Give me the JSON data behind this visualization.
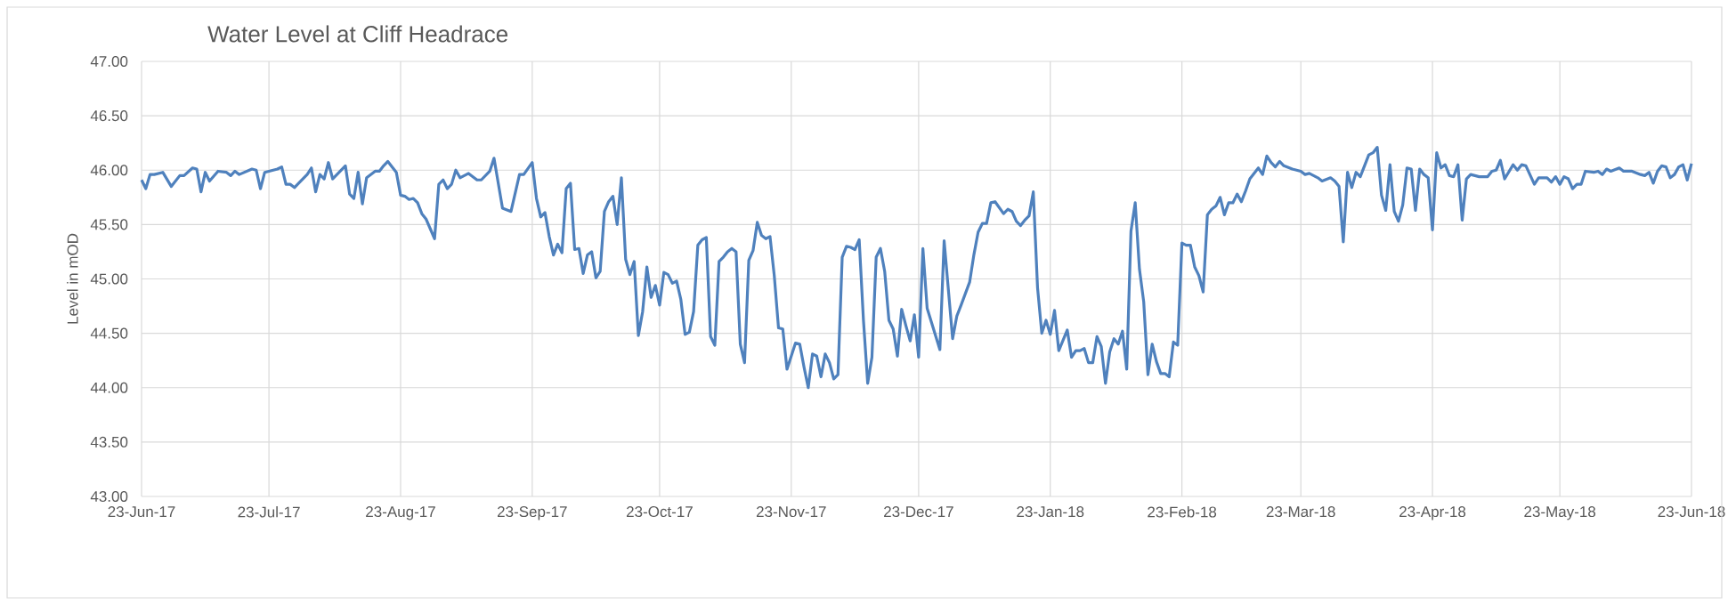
{
  "chart_data": {
    "type": "line",
    "title": "Water Level at Cliff Headrace",
    "ylabel": "Level in mOD",
    "color": "#4f81bd",
    "grid": true,
    "xlim": [
      "2017-06-23",
      "2018-06-23"
    ],
    "xticks": [
      {
        "value": "2017-06-23",
        "label": "23-Jun-17"
      },
      {
        "value": "2017-07-23",
        "label": "23-Jul-17"
      },
      {
        "value": "2017-08-23",
        "label": "23-Aug-17"
      },
      {
        "value": "2017-09-23",
        "label": "23-Sep-17"
      },
      {
        "value": "2017-10-23",
        "label": "23-Oct-17"
      },
      {
        "value": "2017-11-23",
        "label": "23-Nov-17"
      },
      {
        "value": "2017-12-23",
        "label": "23-Dec-17"
      },
      {
        "value": "2018-01-23",
        "label": "23-Jan-18"
      },
      {
        "value": "2018-02-23",
        "label": "23-Feb-18"
      },
      {
        "value": "2018-03-23",
        "label": "23-Mar-18"
      },
      {
        "value": "2018-04-23",
        "label": "23-Apr-18"
      },
      {
        "value": "2018-05-23",
        "label": "23-May-18"
      },
      {
        "value": "2018-06-23",
        "label": "23-Jun-18"
      }
    ],
    "ylim": [
      43,
      47
    ],
    "yticks": [
      {
        "value": 43,
        "label": "43.00"
      },
      {
        "value": 43.5,
        "label": "43.50"
      },
      {
        "value": 44,
        "label": "44.00"
      },
      {
        "value": 44.5,
        "label": "44.50"
      },
      {
        "value": 45,
        "label": "45.00"
      },
      {
        "value": 45.5,
        "label": "45.50"
      },
      {
        "value": 46,
        "label": "46.00"
      },
      {
        "value": 46.5,
        "label": "46.50"
      },
      {
        "value": 47,
        "label": "47.00"
      }
    ],
    "x": [
      "2017-06-23",
      "2017-06-24",
      "2017-06-25",
      "2017-06-26",
      "2017-06-28",
      "2017-06-30",
      "2017-07-02",
      "2017-07-03",
      "2017-07-05",
      "2017-07-06",
      "2017-07-07",
      "2017-07-08",
      "2017-07-09",
      "2017-07-11",
      "2017-07-13",
      "2017-07-14",
      "2017-07-15",
      "2017-07-16",
      "2017-07-19",
      "2017-07-20",
      "2017-07-21",
      "2017-07-22",
      "2017-07-25",
      "2017-07-26",
      "2017-07-27",
      "2017-07-28",
      "2017-07-29",
      "2017-07-30",
      "2017-08-01",
      "2017-08-02",
      "2017-08-03",
      "2017-08-04",
      "2017-08-05",
      "2017-08-06",
      "2017-08-07",
      "2017-08-10",
      "2017-08-11",
      "2017-08-12",
      "2017-08-13",
      "2017-08-14",
      "2017-08-15",
      "2017-08-17",
      "2017-08-18",
      "2017-08-19",
      "2017-08-20",
      "2017-08-22",
      "2017-08-23",
      "2017-08-24",
      "2017-08-25",
      "2017-08-26",
      "2017-08-27",
      "2017-08-28",
      "2017-08-29",
      "2017-08-30",
      "2017-08-31",
      "2017-09-01",
      "2017-09-02",
      "2017-09-03",
      "2017-09-04",
      "2017-09-05",
      "2017-09-06",
      "2017-09-08",
      "2017-09-10",
      "2017-09-11",
      "2017-09-13",
      "2017-09-14",
      "2017-09-16",
      "2017-09-18",
      "2017-09-20",
      "2017-09-21",
      "2017-09-23",
      "2017-09-24",
      "2017-09-25",
      "2017-09-26",
      "2017-09-27",
      "2017-09-28",
      "2017-09-29",
      "2017-09-30",
      "2017-10-01",
      "2017-10-02",
      "2017-10-03",
      "2017-10-04",
      "2017-10-05",
      "2017-10-06",
      "2017-10-07",
      "2017-10-08",
      "2017-10-09",
      "2017-10-10",
      "2017-10-11",
      "2017-10-12",
      "2017-10-13",
      "2017-10-14",
      "2017-10-15",
      "2017-10-16",
      "2017-10-17",
      "2017-10-18",
      "2017-10-19",
      "2017-10-20",
      "2017-10-21",
      "2017-10-22",
      "2017-10-23",
      "2017-10-24",
      "2017-10-25",
      "2017-10-26",
      "2017-10-27",
      "2017-10-28",
      "2017-10-29",
      "2017-10-30",
      "2017-10-31",
      "2017-11-01",
      "2017-11-02",
      "2017-11-03",
      "2017-11-04",
      "2017-11-05",
      "2017-11-06",
      "2017-11-07",
      "2017-11-08",
      "2017-11-09",
      "2017-11-10",
      "2017-11-11",
      "2017-11-12",
      "2017-11-13",
      "2017-11-14",
      "2017-11-15",
      "2017-11-16",
      "2017-11-17",
      "2017-11-18",
      "2017-11-19",
      "2017-11-20",
      "2017-11-21",
      "2017-11-22",
      "2017-11-24",
      "2017-11-25",
      "2017-11-26",
      "2017-11-27",
      "2017-11-28",
      "2017-11-29",
      "2017-11-30",
      "2017-12-01",
      "2017-12-02",
      "2017-12-03",
      "2017-12-04",
      "2017-12-05",
      "2017-12-06",
      "2017-12-07",
      "2017-12-08",
      "2017-12-09",
      "2017-12-10",
      "2017-12-11",
      "2017-12-12",
      "2017-12-13",
      "2017-12-14",
      "2017-12-15",
      "2017-12-16",
      "2017-12-17",
      "2017-12-18",
      "2017-12-19",
      "2017-12-20",
      "2017-12-21",
      "2017-12-22",
      "2017-12-23",
      "2017-12-24",
      "2017-12-25",
      "2017-12-28",
      "2017-12-29",
      "2017-12-31",
      "2018-01-01",
      "2018-01-02",
      "2018-01-04",
      "2018-01-05",
      "2018-01-06",
      "2018-01-07",
      "2018-01-08",
      "2018-01-09",
      "2018-01-10",
      "2018-01-12",
      "2018-01-13",
      "2018-01-14",
      "2018-01-15",
      "2018-01-16",
      "2018-01-17",
      "2018-01-18",
      "2018-01-19",
      "2018-01-20",
      "2018-01-21",
      "2018-01-22",
      "2018-01-23",
      "2018-01-24",
      "2018-01-25",
      "2018-01-27",
      "2018-01-28",
      "2018-01-29",
      "2018-01-30",
      "2018-01-31",
      "2018-02-01",
      "2018-02-02",
      "2018-02-03",
      "2018-02-04",
      "2018-02-05",
      "2018-02-06",
      "2018-02-07",
      "2018-02-08",
      "2018-02-09",
      "2018-02-10",
      "2018-02-11",
      "2018-02-12",
      "2018-02-13",
      "2018-02-14",
      "2018-02-15",
      "2018-02-16",
      "2018-02-17",
      "2018-02-18",
      "2018-02-19",
      "2018-02-20",
      "2018-02-21",
      "2018-02-22",
      "2018-02-23",
      "2018-02-24",
      "2018-02-25",
      "2018-02-26",
      "2018-02-27",
      "2018-02-28",
      "2018-03-01",
      "2018-03-02",
      "2018-03-03",
      "2018-03-04",
      "2018-03-05",
      "2018-03-06",
      "2018-03-07",
      "2018-03-08",
      "2018-03-09",
      "2018-03-10",
      "2018-03-11",
      "2018-03-13",
      "2018-03-14",
      "2018-03-15",
      "2018-03-16",
      "2018-03-17",
      "2018-03-18",
      "2018-03-19",
      "2018-03-21",
      "2018-03-23",
      "2018-03-24",
      "2018-03-25",
      "2018-03-27",
      "2018-03-28",
      "2018-03-30",
      "2018-03-31",
      "2018-04-01",
      "2018-04-02",
      "2018-04-03",
      "2018-04-04",
      "2018-04-05",
      "2018-04-06",
      "2018-04-08",
      "2018-04-09",
      "2018-04-10",
      "2018-04-11",
      "2018-04-12",
      "2018-04-13",
      "2018-04-14",
      "2018-04-15",
      "2018-04-16",
      "2018-04-17",
      "2018-04-18",
      "2018-04-19",
      "2018-04-20",
      "2018-04-21",
      "2018-04-22",
      "2018-04-23",
      "2018-04-24",
      "2018-04-25",
      "2018-04-26",
      "2018-04-27",
      "2018-04-28",
      "2018-04-29",
      "2018-04-30",
      "2018-05-01",
      "2018-05-02",
      "2018-05-04",
      "2018-05-06",
      "2018-05-07",
      "2018-05-08",
      "2018-05-09",
      "2018-05-10",
      "2018-05-12",
      "2018-05-13",
      "2018-05-14",
      "2018-05-15",
      "2018-05-17",
      "2018-05-18",
      "2018-05-20",
      "2018-05-21",
      "2018-05-22",
      "2018-05-23",
      "2018-05-24",
      "2018-05-25",
      "2018-05-26",
      "2018-05-27",
      "2018-05-28",
      "2018-05-29",
      "2018-05-31",
      "2018-06-01",
      "2018-06-02",
      "2018-06-03",
      "2018-06-04",
      "2018-06-06",
      "2018-06-07",
      "2018-06-09",
      "2018-06-11",
      "2018-06-12",
      "2018-06-13",
      "2018-06-14",
      "2018-06-15",
      "2018-06-16",
      "2018-06-17",
      "2018-06-18",
      "2018-06-19",
      "2018-06-20",
      "2018-06-21",
      "2018-06-22",
      "2018-06-23"
    ],
    "values": [
      45.91,
      45.83,
      45.96,
      45.96,
      45.98,
      45.85,
      45.95,
      45.95,
      46.02,
      46.01,
      45.8,
      45.98,
      45.9,
      45.99,
      45.98,
      45.95,
      45.99,
      45.96,
      46.01,
      46.0,
      45.83,
      45.98,
      46.01,
      46.03,
      45.87,
      45.87,
      45.84,
      45.88,
      45.96,
      46.02,
      45.8,
      45.96,
      45.92,
      46.07,
      45.92,
      46.04,
      45.78,
      45.74,
      45.98,
      45.69,
      45.93,
      45.99,
      45.99,
      46.04,
      46.08,
      45.98,
      45.77,
      45.76,
      45.73,
      45.74,
      45.7,
      45.6,
      45.55,
      45.46,
      45.37,
      45.87,
      45.91,
      45.83,
      45.87,
      46.0,
      45.93,
      45.97,
      45.91,
      45.91,
      45.99,
      46.11,
      45.65,
      45.62,
      45.96,
      45.96,
      46.07,
      45.74,
      45.57,
      45.61,
      45.39,
      45.22,
      45.32,
      45.24,
      45.83,
      45.88,
      45.27,
      45.28,
      45.05,
      45.22,
      45.25,
      45.01,
      45.07,
      45.62,
      45.71,
      45.76,
      45.5,
      45.93,
      45.18,
      45.04,
      45.16,
      44.48,
      44.7,
      45.11,
      44.83,
      44.94,
      44.76,
      45.06,
      45.04,
      44.96,
      44.98,
      44.81,
      44.49,
      44.51,
      44.7,
      45.31,
      45.36,
      45.38,
      44.47,
      44.39,
      45.16,
      45.2,
      45.25,
      45.28,
      45.25,
      44.4,
      44.23,
      45.17,
      45.26,
      45.52,
      45.4,
      45.37,
      45.39,
      45.03,
      44.55,
      44.54,
      44.17,
      44.41,
      44.4,
      44.19,
      44.0,
      44.31,
      44.29,
      44.1,
      44.31,
      44.23,
      44.08,
      44.12,
      45.2,
      45.3,
      45.29,
      45.27,
      45.36,
      44.62,
      44.04,
      44.28,
      45.2,
      45.28,
      45.07,
      44.62,
      44.54,
      44.29,
      44.72,
      44.57,
      44.43,
      44.67,
      44.28,
      45.28,
      44.73,
      44.35,
      45.35,
      44.45,
      44.66,
      44.76,
      44.97,
      45.22,
      45.43,
      45.51,
      45.51,
      45.7,
      45.71,
      45.6,
      45.64,
      45.62,
      45.53,
      45.49,
      45.54,
      45.58,
      45.8,
      44.92,
      44.5,
      44.62,
      44.49,
      44.71,
      44.34,
      44.53,
      44.28,
      44.34,
      44.34,
      44.36,
      44.23,
      44.23,
      44.47,
      44.38,
      44.04,
      44.33,
      44.45,
      44.4,
      44.52,
      44.17,
      45.44,
      45.7,
      45.09,
      44.79,
      44.12,
      44.4,
      44.24,
      44.13,
      44.13,
      44.1,
      44.42,
      44.39,
      45.33,
      45.31,
      45.31,
      45.11,
      45.03,
      44.88,
      45.59,
      45.64,
      45.67,
      45.75,
      45.59,
      45.7,
      45.7,
      45.78,
      45.71,
      45.81,
      45.92,
      46.02,
      45.96,
      46.13,
      46.07,
      46.03,
      46.08,
      46.04,
      46.01,
      45.99,
      45.96,
      45.97,
      45.93,
      45.9,
      45.93,
      45.9,
      45.85,
      45.34,
      45.98,
      45.84,
      45.98,
      45.94,
      46.14,
      46.16,
      46.21,
      45.77,
      45.63,
      46.05,
      45.62,
      45.53,
      45.68,
      46.02,
      46.01,
      45.63,
      46.01,
      45.96,
      45.93,
      45.45,
      46.16,
      46.02,
      46.05,
      45.95,
      45.94,
      46.05,
      45.54,
      45.92,
      45.96,
      45.94,
      45.94,
      45.99,
      46.0,
      46.09,
      45.92,
      46.05,
      46.0,
      46.05,
      46.04,
      45.87,
      45.93,
      45.93,
      45.89,
      45.94,
      45.87,
      45.94,
      45.92,
      45.83,
      45.87,
      45.87,
      45.99,
      45.98,
      45.99,
      45.96,
      46.01,
      45.99,
      46.02,
      45.99,
      45.99,
      45.96,
      45.95,
      45.98,
      45.88,
      45.99,
      46.04,
      46.03,
      45.93,
      45.96,
      46.03,
      46.05,
      45.91,
      46.06
    ]
  }
}
